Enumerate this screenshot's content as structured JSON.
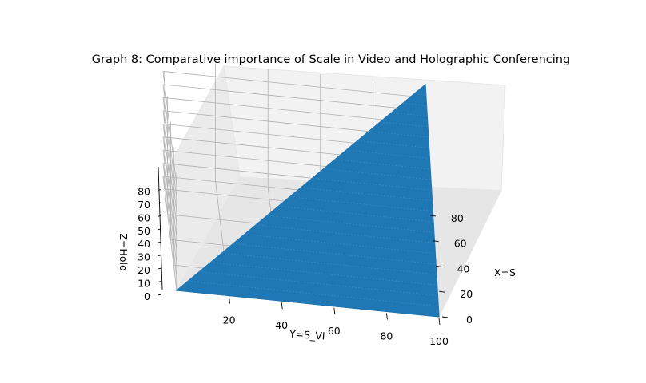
{
  "chart_data": {
    "type": "surface",
    "title": "Graph 8: Comparative importance of Scale in Video and Holographic Conferencing",
    "xlabel": "X=S",
    "ylabel": "Y=S_VI",
    "zlabel": "Z=Holo",
    "x_ticks": [
      "0",
      "20",
      "40",
      "60",
      "80"
    ],
    "y_ticks": [
      "20",
      "40",
      "60",
      "80",
      "100"
    ],
    "z_ticks": [
      "0",
      "10",
      "20",
      "30",
      "40",
      "50",
      "60",
      "70",
      "80"
    ],
    "xlim": [
      0,
      90
    ],
    "ylim": [
      0,
      100
    ],
    "zlim": [
      0,
      90
    ],
    "grid": true,
    "surface_color": "#1f77b4",
    "pane_color": "#f2f2f2",
    "surface_vertices": [
      {
        "x": 0,
        "y": 0,
        "z": 0
      },
      {
        "x": 0,
        "y": 100,
        "z": 0
      },
      {
        "x": 90,
        "y": 100,
        "z": 90
      }
    ]
  }
}
